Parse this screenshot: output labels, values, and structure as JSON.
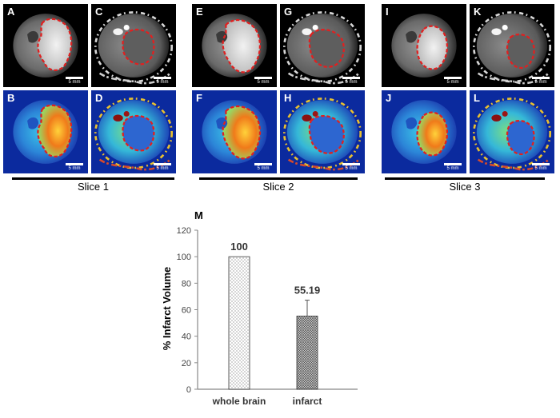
{
  "figure": {
    "panels": [
      {
        "label": "A",
        "scale": "5 mm"
      },
      {
        "label": "B",
        "scale": "5 mm"
      },
      {
        "label": "C",
        "scale": "5 mm"
      },
      {
        "label": "D",
        "scale": "5 mm"
      },
      {
        "label": "E",
        "scale": "5 mm"
      },
      {
        "label": "F",
        "scale": "5 mm"
      },
      {
        "label": "G",
        "scale": "5 mm"
      },
      {
        "label": "H",
        "scale": "5 mm"
      },
      {
        "label": "I",
        "scale": "5 mm"
      },
      {
        "label": "J",
        "scale": "5 mm"
      },
      {
        "label": "K",
        "scale": "5 mm"
      },
      {
        "label": "L",
        "scale": "5 mm"
      }
    ],
    "slices": [
      "Slice 1",
      "Slice 2",
      "Slice 3"
    ],
    "chart_label": "M"
  },
  "chart_data": {
    "type": "bar",
    "categories": [
      "whole brain",
      "infarct"
    ],
    "values": [
      100,
      55.19
    ],
    "error_plus": [
      0,
      12
    ],
    "data_labels": [
      "100",
      "55.19"
    ],
    "ylabel": "% Infarct Volume",
    "ylim": [
      0,
      120
    ],
    "yticks": [
      0,
      20,
      40,
      60,
      80,
      100,
      120
    ],
    "patterns": [
      "sparse-dots",
      "dense-dots"
    ],
    "grid": false
  }
}
